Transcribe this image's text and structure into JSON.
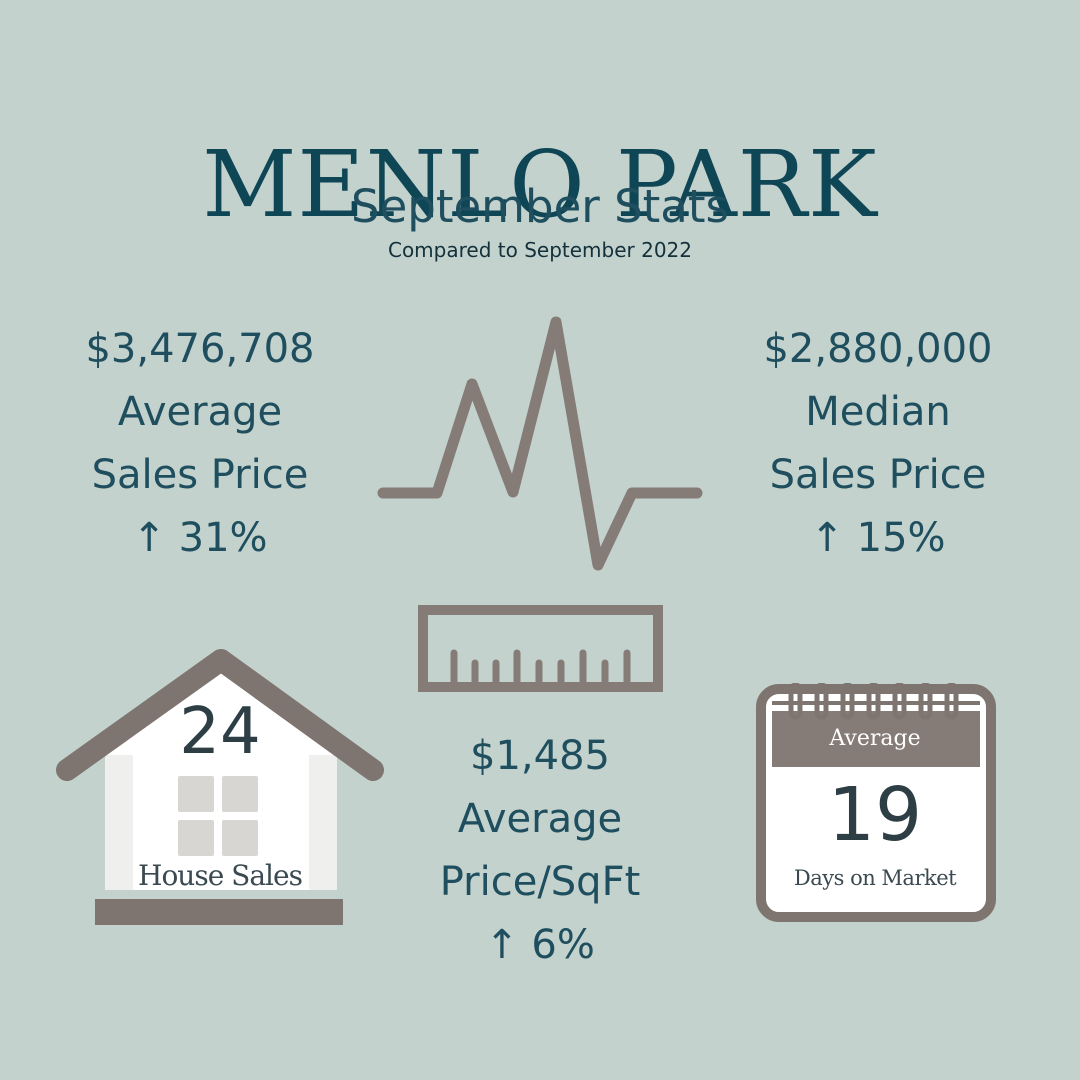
{
  "header": {
    "title": "MENLO PARK",
    "subtitle": "September Stats",
    "comparison": "Compared to September 2022"
  },
  "stats": {
    "average_sales_price": {
      "value": "$3,476,708",
      "label_line1": "Average",
      "label_line2": "Sales Price",
      "change": "↑ 31%"
    },
    "median_sales_price": {
      "value": "$2,880,000",
      "label_line1": "Median",
      "label_line2": "Sales Price",
      "change": "↑ 15%"
    },
    "average_price_sqft": {
      "value": "$1,485",
      "label_line1": "Average",
      "label_line2": "Price/SqFt",
      "change": "↑ 6%"
    },
    "house_sales": {
      "value": "24",
      "label": "House Sales"
    },
    "days_on_market": {
      "header": "Average",
      "value": "19",
      "label": "Days on Market"
    }
  },
  "icons": {
    "pulse": "heartbeat-line-icon",
    "ruler": "ruler-icon",
    "house": "house-icon",
    "calendar": "calendar-icon"
  },
  "colors": {
    "background": "#c3d2cd",
    "title": "#0f4656",
    "text": "#1f4e5e",
    "icon_brown": "#857b77"
  }
}
